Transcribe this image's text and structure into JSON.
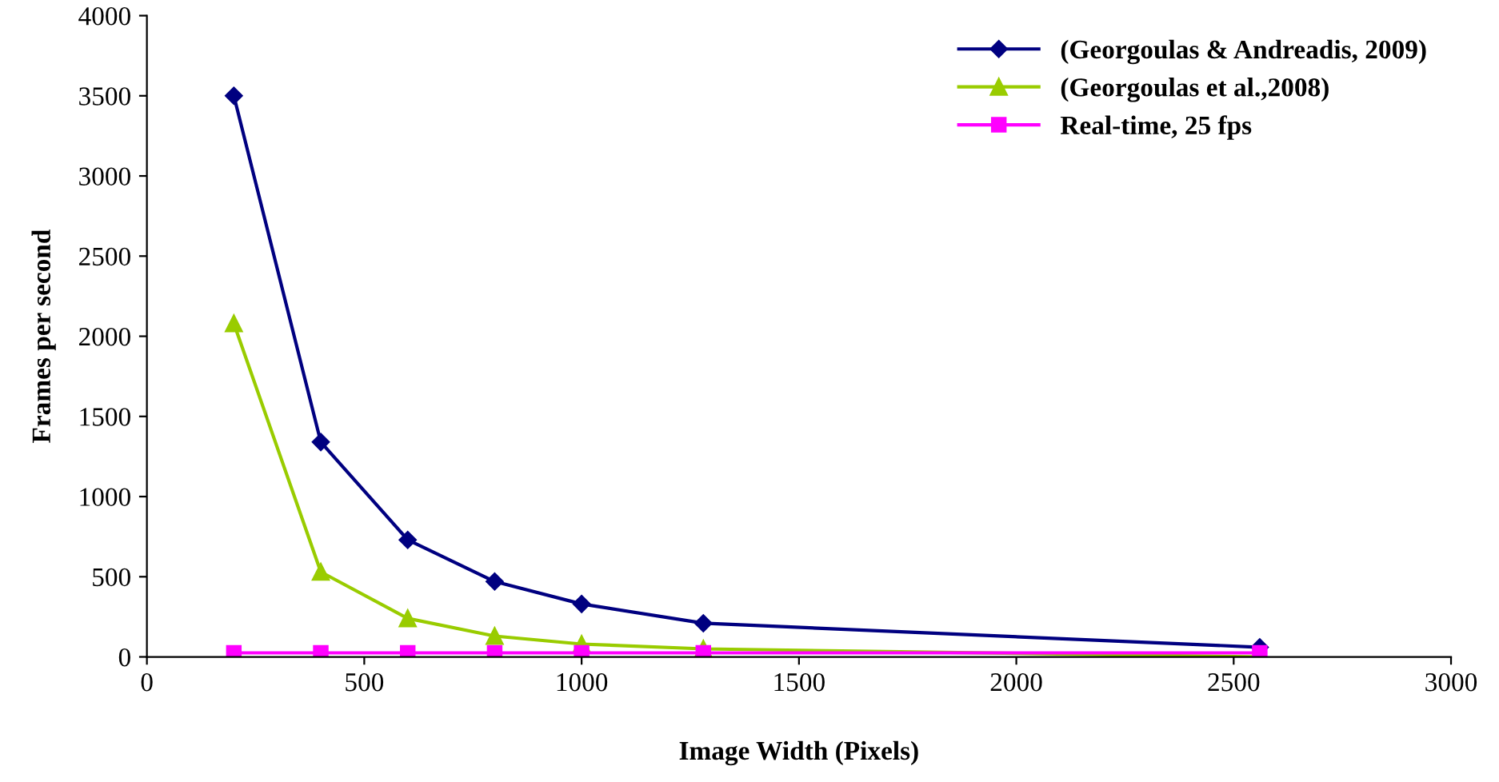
{
  "chart_data": {
    "type": "line",
    "xlabel": "Image Width (Pixels)",
    "ylabel": "Frames per second",
    "x": [
      200,
      400,
      600,
      800,
      1000,
      1280,
      2560
    ],
    "series": [
      {
        "name": "(Georgoulas & Andreadis, 2009)",
        "color": "#000080",
        "marker": "diamond",
        "values": [
          3500,
          1340,
          730,
          470,
          330,
          210,
          60
        ]
      },
      {
        "name": "(Georgoulas et al.,2008)",
        "color": "#99cc00",
        "marker": "triangle",
        "values": [
          2080,
          530,
          240,
          130,
          80,
          50,
          0
        ]
      },
      {
        "name": "Real-time, 25 fps",
        "color": "#ff00ff",
        "marker": "square",
        "values": [
          25,
          25,
          25,
          25,
          25,
          25,
          25
        ]
      }
    ],
    "xlim": [
      0,
      3000
    ],
    "xticks": [
      0,
      500,
      1000,
      1500,
      2000,
      2500,
      3000
    ],
    "ylim": [
      0,
      4000
    ],
    "yticks": [
      0,
      500,
      1000,
      1500,
      2000,
      2500,
      3000,
      3500,
      4000
    ],
    "grid": false,
    "legend": "top right",
    "line_style": "solid"
  }
}
